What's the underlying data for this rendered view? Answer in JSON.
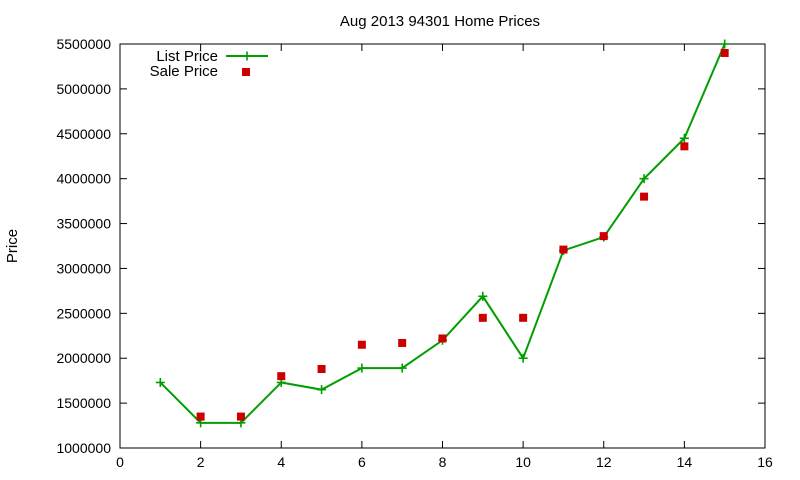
{
  "chart_data": {
    "type": "line",
    "title": "Aug 2013 94301 Home Prices",
    "xlabel": "",
    "ylabel": "Price",
    "xlim": [
      0,
      16
    ],
    "ylim": [
      1000000,
      5500000
    ],
    "xticks": [
      0,
      2,
      4,
      6,
      8,
      10,
      12,
      14,
      16
    ],
    "yticks": [
      1000000,
      1500000,
      2000000,
      2500000,
      3000000,
      3500000,
      4000000,
      4500000,
      5000000,
      5500000
    ],
    "xtick_labels": [
      "0",
      "2",
      "4",
      "6",
      "8",
      "10",
      "12",
      "14",
      "16"
    ],
    "ytick_labels": [
      "1000000",
      "1500000",
      "2000000",
      "2500000",
      "3000000",
      "3500000",
      "4000000",
      "4500000",
      "5000000",
      "5500000"
    ],
    "grid": false,
    "legend_position": "top-left",
    "series": [
      {
        "name": "List Price",
        "style": "line-with-plus-markers",
        "color": "#009e00",
        "x": [
          1,
          2,
          3,
          4,
          5,
          6,
          7,
          8,
          9,
          10,
          11,
          12,
          13,
          14,
          15
        ],
        "y": [
          1730000,
          1280000,
          1280000,
          1730000,
          1650000,
          1890000,
          1890000,
          2200000,
          2690000,
          2000000,
          3200000,
          3350000,
          4000000,
          4450000,
          5500000
        ]
      },
      {
        "name": "Sale Price",
        "style": "square-points",
        "color": "#cc0000",
        "x": [
          2,
          3,
          4,
          5,
          6,
          7,
          8,
          9,
          10,
          11,
          12,
          13,
          14,
          15
        ],
        "y": [
          1350000,
          1350000,
          1800000,
          1880000,
          2150000,
          2170000,
          2220000,
          2450000,
          2450000,
          3210000,
          3360000,
          3800000,
          4360000,
          5400000
        ]
      }
    ]
  }
}
